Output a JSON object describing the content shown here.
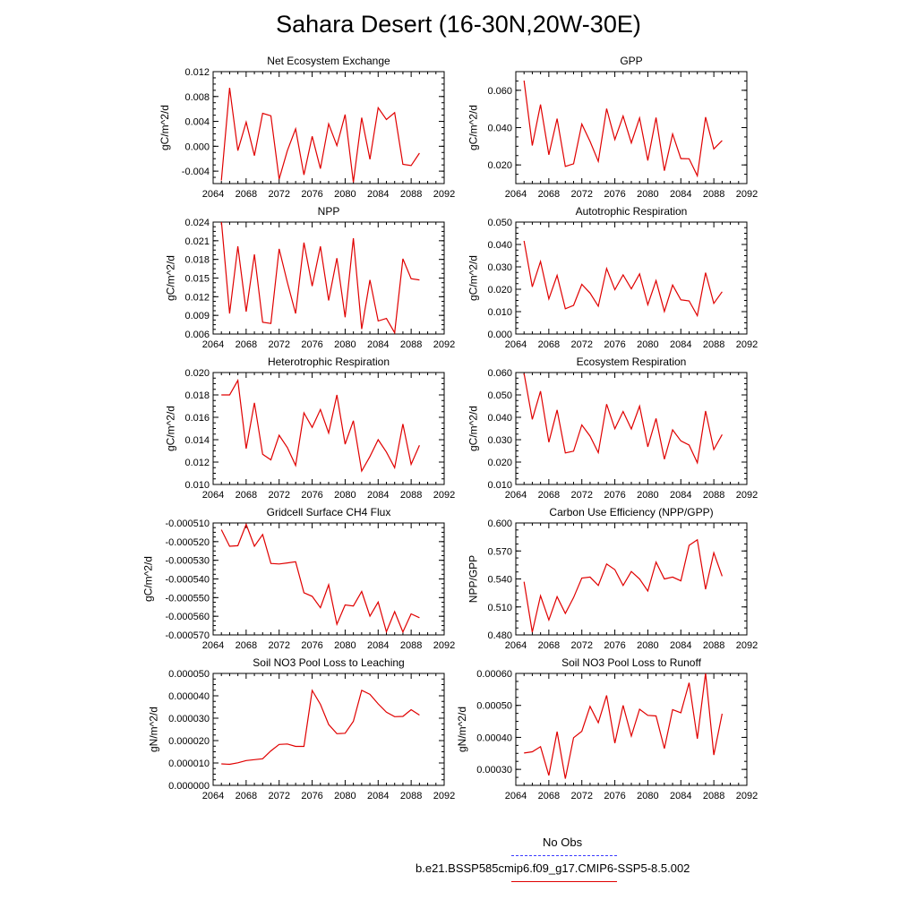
{
  "figure": {
    "title": "Sahara Desert (16-30N,20W-30E)",
    "line_color": "#e00000",
    "obs_color": "#3a3aff"
  },
  "legend": {
    "obs_label": "No Obs",
    "model_label": "b.e21.BSSP585cmip6.f09_g17.CMIP6-SSP5-8.5.002"
  },
  "chart_data": [
    {
      "type": "line",
      "title": "Net Ecosystem Exchange",
      "ylabel": "gC/m^2/d",
      "xlim": [
        2064,
        2092
      ],
      "xticks": [
        "2064",
        "2068",
        "2072",
        "2076",
        "2080",
        "2084",
        "2088",
        "2092"
      ],
      "ylim": [
        -0.006,
        0.012
      ],
      "yticks": [
        "-0.004",
        "0.000",
        "0.004",
        "0.008",
        "0.012"
      ],
      "x": [
        2065,
        2066,
        2067,
        2068,
        2069,
        2070,
        2071,
        2072,
        2073,
        2074,
        2075,
        2076,
        2077,
        2078,
        2079,
        2080,
        2081,
        2082,
        2083,
        2084,
        2085,
        2086,
        2087,
        2088,
        2089
      ],
      "values": [
        -0.0055,
        0.0094,
        -0.0007,
        0.0039,
        -0.0015,
        0.0053,
        0.0049,
        -0.0053,
        -0.0007,
        0.0028,
        -0.0046,
        0.0016,
        -0.0036,
        0.0036,
        0.0001,
        0.0051,
        -0.0058,
        0.0046,
        -0.0021,
        0.0062,
        0.0043,
        0.0054,
        -0.0029,
        -0.0031,
        -0.0011
      ]
    },
    {
      "type": "line",
      "title": "GPP",
      "ylabel": "gC/m^2/d",
      "xlim": [
        2064,
        2092
      ],
      "xticks": [
        "2064",
        "2068",
        "2072",
        "2076",
        "2080",
        "2084",
        "2088",
        "2092"
      ],
      "ylim": [
        0.01,
        0.07
      ],
      "yticks": [
        "0.020",
        "0.040",
        "0.060"
      ],
      "x": [
        2065,
        2066,
        2067,
        2068,
        2069,
        2070,
        2071,
        2072,
        2073,
        2074,
        2075,
        2076,
        2077,
        2078,
        2079,
        2080,
        2081,
        2082,
        2083,
        2084,
        2085,
        2086,
        2087,
        2088,
        2089
      ],
      "values": [
        0.0652,
        0.0304,
        0.0524,
        0.0254,
        0.0448,
        0.0192,
        0.0206,
        0.0419,
        0.0326,
        0.0219,
        0.0502,
        0.0336,
        0.0462,
        0.0318,
        0.0452,
        0.0224,
        0.0454,
        0.0169,
        0.0366,
        0.0234,
        0.0233,
        0.0142,
        0.0456,
        0.0286,
        0.0331
      ]
    },
    {
      "type": "line",
      "title": "NPP",
      "ylabel": "gC/m^2/d",
      "xlim": [
        2064,
        2092
      ],
      "xticks": [
        "2064",
        "2068",
        "2072",
        "2076",
        "2080",
        "2084",
        "2088",
        "2092"
      ],
      "ylim": [
        0.006,
        0.024
      ],
      "yticks": [
        "0.006",
        "0.009",
        "0.012",
        "0.015",
        "0.018",
        "0.021",
        "0.024"
      ],
      "x": [
        2065,
        2066,
        2067,
        2068,
        2069,
        2070,
        2071,
        2072,
        2073,
        2074,
        2075,
        2076,
        2077,
        2078,
        2079,
        2080,
        2081,
        2082,
        2083,
        2084,
        2085,
        2086,
        2087,
        2088,
        2089
      ],
      "values": [
        0.0242,
        0.0093,
        0.0201,
        0.0096,
        0.0188,
        0.0079,
        0.0077,
        0.0197,
        0.0143,
        0.0093,
        0.0207,
        0.0137,
        0.0201,
        0.0114,
        0.0182,
        0.0087,
        0.0214,
        0.0068,
        0.0147,
        0.0081,
        0.0085,
        0.0062,
        0.0181,
        0.0149,
        0.0147
      ]
    },
    {
      "type": "line",
      "title": "Autotrophic Respiration",
      "ylabel": "gC/m^2/d",
      "xlim": [
        2064,
        2092
      ],
      "xticks": [
        "2064",
        "2068",
        "2072",
        "2076",
        "2080",
        "2084",
        "2088",
        "2092"
      ],
      "ylim": [
        0.0,
        0.05
      ],
      "yticks": [
        "0.000",
        "0.010",
        "0.020",
        "0.030",
        "0.040",
        "0.050"
      ],
      "x": [
        2065,
        2066,
        2067,
        2068,
        2069,
        2070,
        2071,
        2072,
        2073,
        2074,
        2075,
        2076,
        2077,
        2078,
        2079,
        2080,
        2081,
        2082,
        2083,
        2084,
        2085,
        2086,
        2087,
        2088,
        2089
      ],
      "values": [
        0.0416,
        0.0211,
        0.0324,
        0.0157,
        0.0262,
        0.0113,
        0.0128,
        0.0222,
        0.0183,
        0.0124,
        0.0293,
        0.0198,
        0.0264,
        0.0202,
        0.0269,
        0.0131,
        0.0239,
        0.0101,
        0.0219,
        0.0153,
        0.0148,
        0.0082,
        0.0274,
        0.0137,
        0.0189
      ]
    },
    {
      "type": "line",
      "title": "Heterotrophic Respiration",
      "ylabel": "gC/m^2/d",
      "xlim": [
        2064,
        2092
      ],
      "xticks": [
        "2064",
        "2068",
        "2072",
        "2076",
        "2080",
        "2084",
        "2088",
        "2092"
      ],
      "ylim": [
        0.01,
        0.02
      ],
      "yticks": [
        "0.010",
        "0.012",
        "0.014",
        "0.016",
        "0.018",
        "0.020"
      ],
      "x": [
        2065,
        2066,
        2067,
        2068,
        2069,
        2070,
        2071,
        2072,
        2073,
        2074,
        2075,
        2076,
        2077,
        2078,
        2079,
        2080,
        2081,
        2082,
        2083,
        2084,
        2085,
        2086,
        2087,
        2088,
        2089
      ],
      "values": [
        0.018,
        0.018,
        0.0193,
        0.0132,
        0.0173,
        0.0127,
        0.0122,
        0.0144,
        0.0133,
        0.0117,
        0.0164,
        0.0151,
        0.0167,
        0.0146,
        0.018,
        0.0136,
        0.0157,
        0.0112,
        0.0125,
        0.014,
        0.0129,
        0.0115,
        0.0154,
        0.0118,
        0.0135
      ]
    },
    {
      "type": "line",
      "title": "Ecosystem Respiration",
      "ylabel": "gC/m^2/d",
      "xlim": [
        2064,
        2092
      ],
      "xticks": [
        "2064",
        "2068",
        "2072",
        "2076",
        "2080",
        "2084",
        "2088",
        "2092"
      ],
      "ylim": [
        0.01,
        0.06
      ],
      "yticks": [
        "0.010",
        "0.020",
        "0.030",
        "0.040",
        "0.050",
        "0.060"
      ],
      "x": [
        2065,
        2066,
        2067,
        2068,
        2069,
        2070,
        2071,
        2072,
        2073,
        2074,
        2075,
        2076,
        2077,
        2078,
        2079,
        2080,
        2081,
        2082,
        2083,
        2084,
        2085,
        2086,
        2087,
        2088,
        2089
      ],
      "values": [
        0.0596,
        0.0391,
        0.0517,
        0.0289,
        0.0433,
        0.0241,
        0.0249,
        0.0366,
        0.0316,
        0.0242,
        0.0459,
        0.0349,
        0.0426,
        0.0348,
        0.045,
        0.0268,
        0.0395,
        0.0213,
        0.0344,
        0.0295,
        0.0276,
        0.0197,
        0.0428,
        0.0256,
        0.0323
      ]
    },
    {
      "type": "line",
      "title": "Gridcell Surface CH4 Flux",
      "ylabel": "gC/m^2/d",
      "xlim": [
        2064,
        2092
      ],
      "xticks": [
        "2064",
        "2068",
        "2072",
        "2076",
        "2080",
        "2084",
        "2088",
        "2092"
      ],
      "ylim": [
        -0.00057,
        -0.00051
      ],
      "yticks": [
        "-0.000570",
        "-0.000560",
        "-0.000550",
        "-0.000540",
        "-0.000530",
        "-0.000520",
        "-0.000510"
      ],
      "x": [
        2065,
        2066,
        2067,
        2068,
        2069,
        2070,
        2071,
        2072,
        2073,
        2074,
        2075,
        2076,
        2077,
        2078,
        2079,
        2080,
        2081,
        2082,
        2083,
        2084,
        2085,
        2086,
        2087,
        2088,
        2089
      ],
      "values": [
        -0.0005136,
        -0.0005225,
        -0.0005222,
        -0.0005107,
        -0.0005225,
        -0.0005162,
        -0.0005317,
        -0.000532,
        -0.0005314,
        -0.0005308,
        -0.0005474,
        -0.0005493,
        -0.0005554,
        -0.0005431,
        -0.0005643,
        -0.0005539,
        -0.0005545,
        -0.0005467,
        -0.0005599,
        -0.0005524,
        -0.0005683,
        -0.0005575,
        -0.0005684,
        -0.0005587,
        -0.0005608
      ]
    },
    {
      "type": "line",
      "title": "Carbon Use Efficiency (NPP/GPP)",
      "ylabel": "NPP/GPP",
      "xlim": [
        2064,
        2092
      ],
      "xticks": [
        "2064",
        "2068",
        "2072",
        "2076",
        "2080",
        "2084",
        "2088",
        "2092"
      ],
      "ylim": [
        0.48,
        0.6
      ],
      "yticks": [
        "0.480",
        "0.510",
        "0.540",
        "0.570",
        "0.600"
      ],
      "x": [
        2065,
        2066,
        2067,
        2068,
        2069,
        2070,
        2071,
        2072,
        2073,
        2074,
        2075,
        2076,
        2077,
        2078,
        2079,
        2080,
        2081,
        2082,
        2083,
        2084,
        2085,
        2086,
        2087,
        2088,
        2089
      ],
      "values": [
        0.537,
        0.483,
        0.522,
        0.496,
        0.521,
        0.503,
        0.52,
        0.541,
        0.542,
        0.533,
        0.556,
        0.55,
        0.533,
        0.548,
        0.54,
        0.527,
        0.558,
        0.54,
        0.542,
        0.538,
        0.576,
        0.582,
        0.529,
        0.568,
        0.543
      ]
    },
    {
      "type": "line",
      "title": "Soil NO3 Pool Loss to Leaching",
      "ylabel": "gN/m^2/d",
      "xlim": [
        2064,
        2092
      ],
      "xticks": [
        "2064",
        "2068",
        "2072",
        "2076",
        "2080",
        "2084",
        "2088",
        "2092"
      ],
      "ylim": [
        0.0,
        5e-05
      ],
      "yticks": [
        "0.000000",
        "0.000010",
        "0.000020",
        "0.000030",
        "0.000040",
        "0.000050"
      ],
      "x": [
        2065,
        2066,
        2067,
        2068,
        2069,
        2070,
        2071,
        2072,
        2073,
        2074,
        2075,
        2076,
        2077,
        2078,
        2079,
        2080,
        2081,
        2082,
        2083,
        2084,
        2085,
        2086,
        2087,
        2088,
        2089
      ],
      "values": [
        9.6e-06,
        9.4e-06,
        1.01e-05,
        1.11e-05,
        1.15e-05,
        1.19e-05,
        1.54e-05,
        1.83e-05,
        1.85e-05,
        1.74e-05,
        1.74e-05,
        4.24e-05,
        3.62e-05,
        2.72e-05,
        2.31e-05,
        2.33e-05,
        2.86e-05,
        4.25e-05,
        4.07e-05,
        3.64e-05,
        3.27e-05,
        3.07e-05,
        3.08e-05,
        3.38e-05,
        3.14e-05
      ]
    },
    {
      "type": "line",
      "title": "Soil NO3 Pool Loss to Runoff",
      "ylabel": "gN/m^2/d",
      "xlim": [
        2064,
        2092
      ],
      "xticks": [
        "2064",
        "2068",
        "2072",
        "2076",
        "2080",
        "2084",
        "2088",
        "2092"
      ],
      "ylim": [
        0.00025,
        0.0006
      ],
      "yticks": [
        "0.00030",
        "0.00040",
        "0.00050",
        "0.00060"
      ],
      "x": [
        2065,
        2066,
        2067,
        2068,
        2069,
        2070,
        2071,
        2072,
        2073,
        2074,
        2075,
        2076,
        2077,
        2078,
        2079,
        2080,
        2081,
        2082,
        2083,
        2084,
        2085,
        2086,
        2087,
        2088,
        2089
      ],
      "values": [
        0.000351,
        0.000355,
        0.000371,
        0.000281,
        0.000418,
        0.000271,
        0.000399,
        0.000419,
        0.000497,
        0.000446,
        0.000531,
        0.000382,
        0.0005,
        0.000404,
        0.000488,
        0.000469,
        0.000467,
        0.000365,
        0.000487,
        0.000477,
        0.000571,
        0.000396,
        0.000601,
        0.000345,
        0.000474
      ]
    }
  ]
}
